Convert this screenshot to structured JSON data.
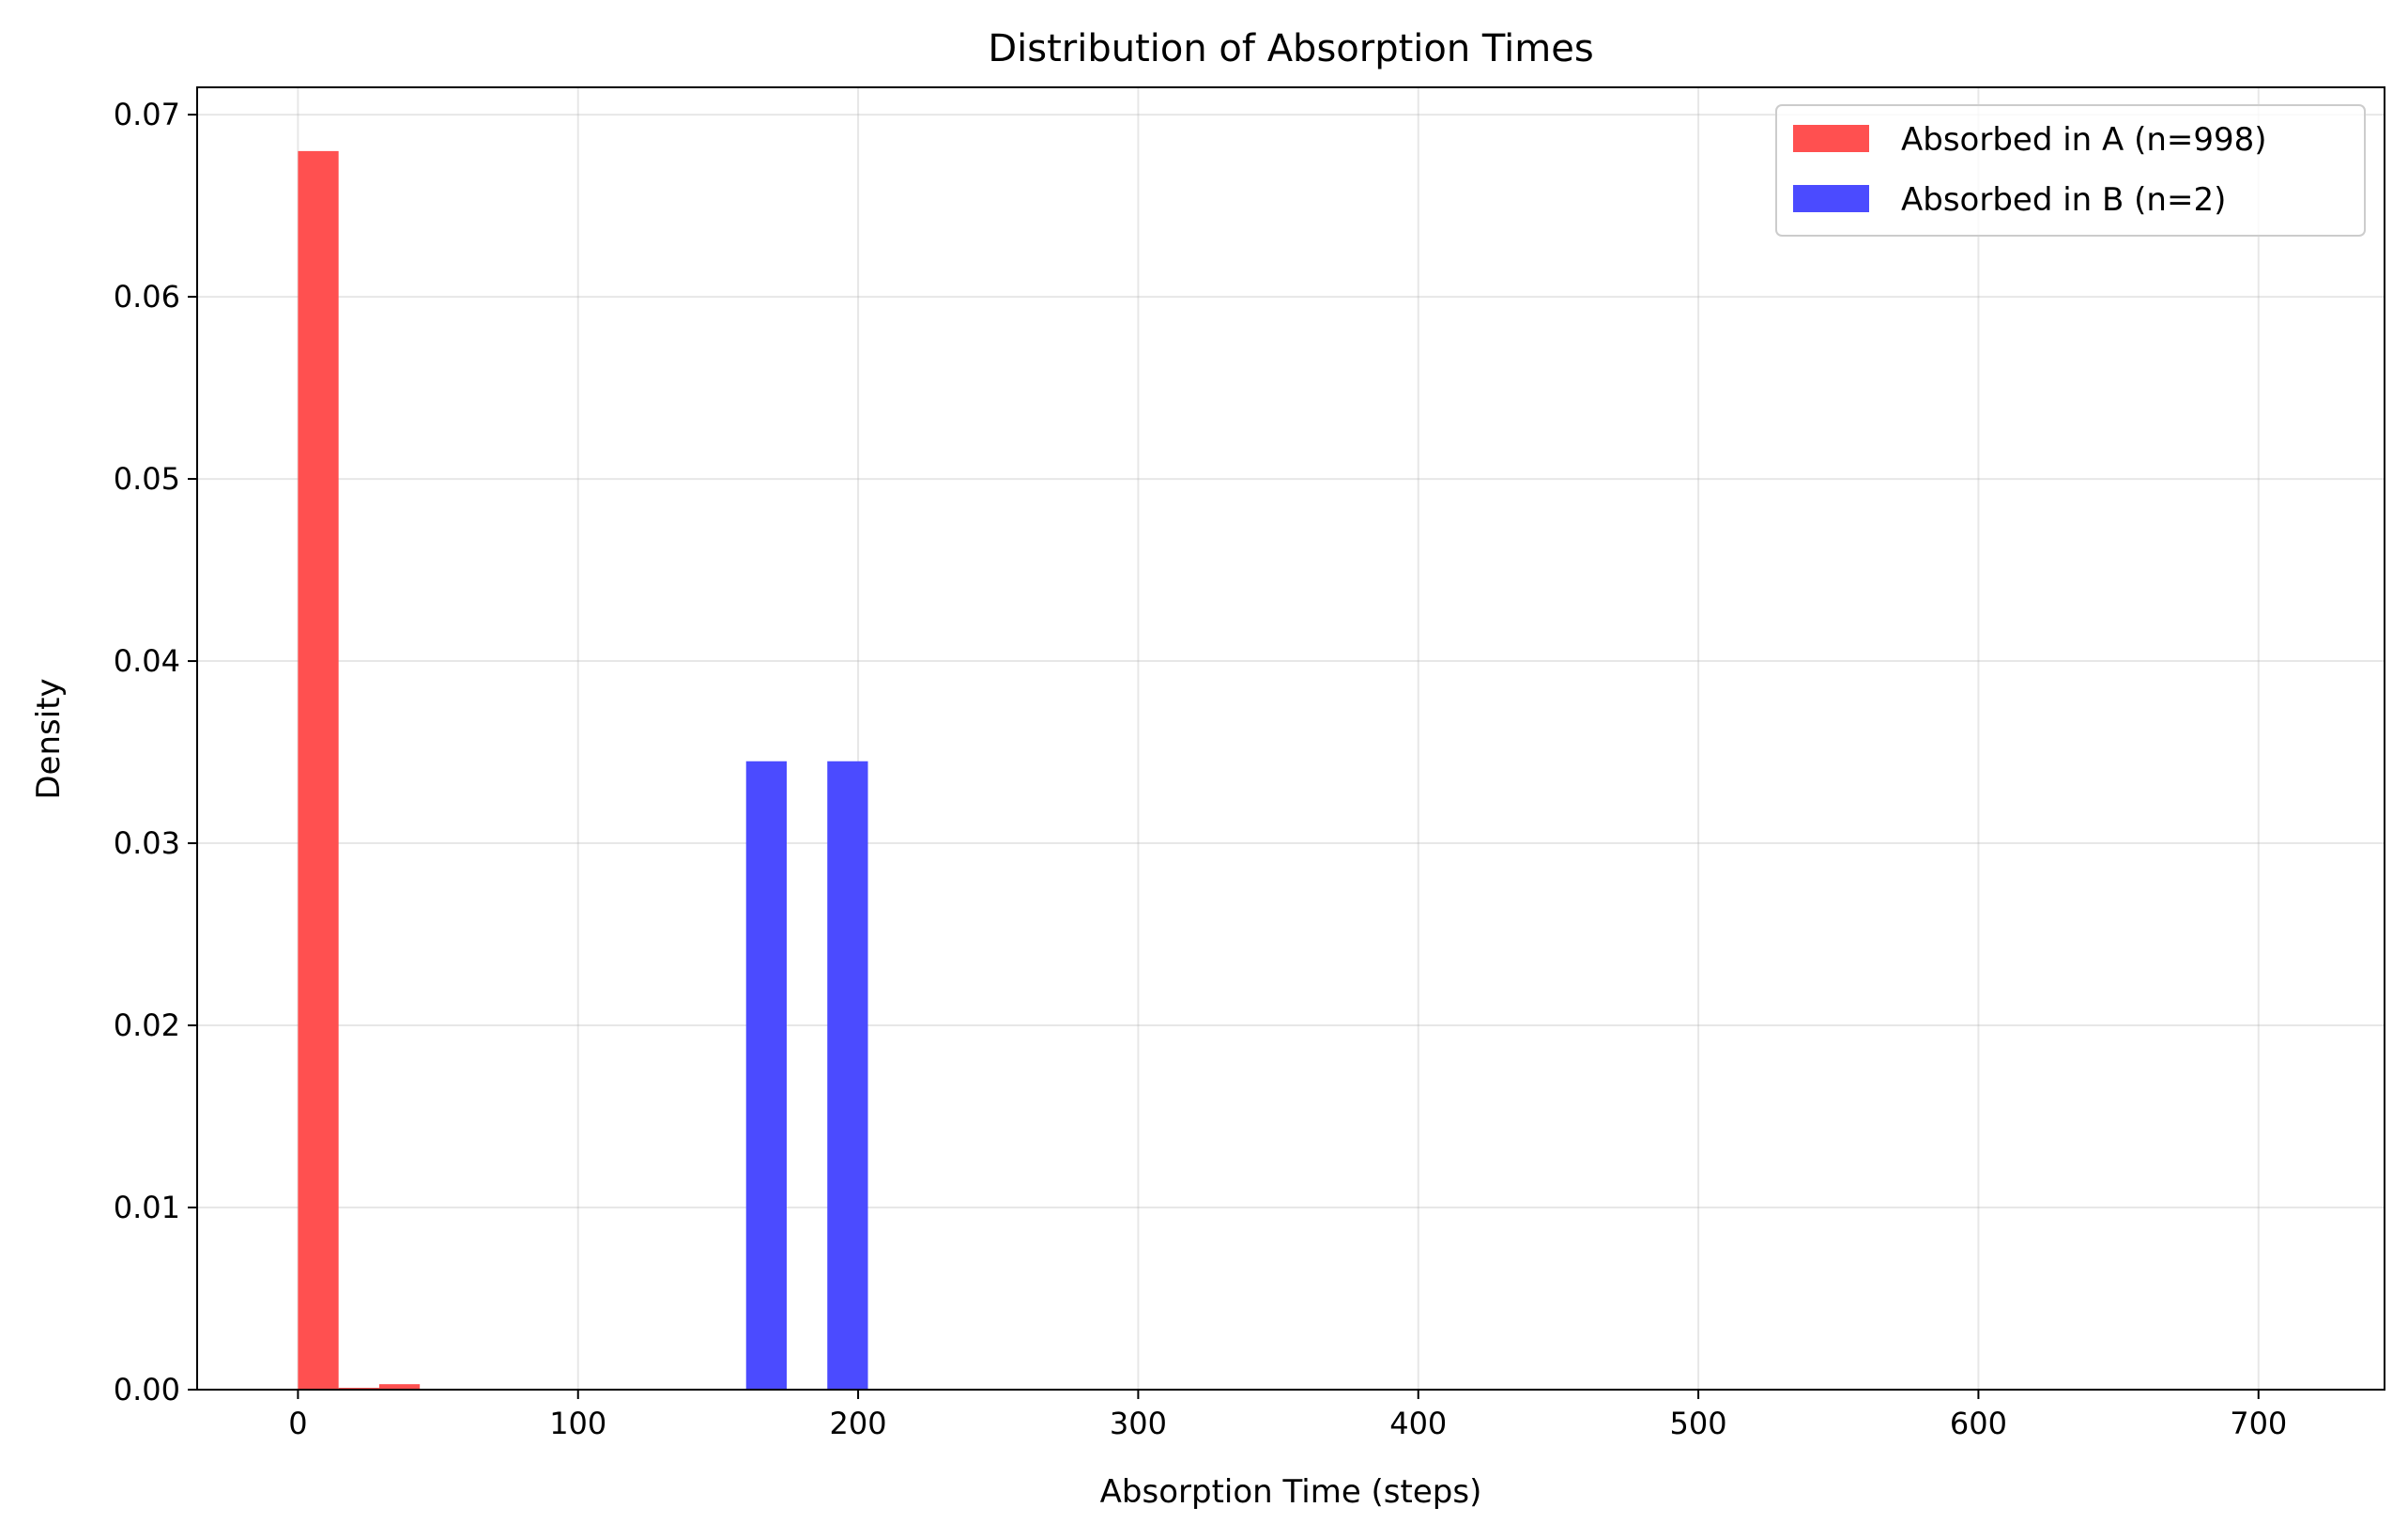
{
  "chart_data": {
    "type": "bar",
    "title": "Distribution of Absorption Times",
    "xlabel": "Absorption Time (steps)",
    "ylabel": "Density",
    "xlim": [
      -36,
      745
    ],
    "ylim": [
      0,
      0.0715
    ],
    "xticks": [
      0,
      100,
      200,
      300,
      400,
      500,
      600,
      700
    ],
    "yticks": [
      0.0,
      0.01,
      0.02,
      0.03,
      0.04,
      0.05,
      0.06,
      0.07
    ],
    "ytick_labels": [
      "0.00",
      "0.01",
      "0.02",
      "0.03",
      "0.04",
      "0.05",
      "0.06",
      "0.07"
    ],
    "grid": true,
    "legend_position": "top-right",
    "series": [
      {
        "name": "Absorbed in A (n=998)",
        "color": "#ff5050",
        "bins": [
          {
            "x0": 0,
            "x1": 14.5,
            "value": 0.068
          },
          {
            "x0": 14.5,
            "x1": 29,
            "value": 0.0001
          },
          {
            "x0": 29,
            "x1": 43.5,
            "value": 0.0003
          }
        ]
      },
      {
        "name": "Absorbed in B (n=2)",
        "color": "#4b4bff",
        "bins": [
          {
            "x0": 160,
            "x1": 174.5,
            "value": 0.0345
          },
          {
            "x0": 174.5,
            "x1": 189,
            "value": 0.0
          },
          {
            "x0": 189,
            "x1": 203.5,
            "value": 0.0345
          }
        ]
      }
    ]
  }
}
